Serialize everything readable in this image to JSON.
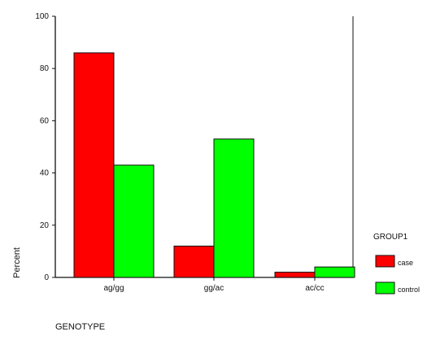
{
  "chart_data": {
    "type": "bar",
    "title": "",
    "xlabel": "GENOTYPE",
    "ylabel": "Percent",
    "ylim": [
      0,
      100
    ],
    "yticks": [
      0,
      20,
      40,
      60,
      80,
      100
    ],
    "categories": [
      "ag/gg",
      "gg/ac",
      "ac/cc"
    ],
    "series": [
      {
        "name": "case",
        "color": "#ff0000",
        "values": [
          86,
          12,
          2
        ]
      },
      {
        "name": "control",
        "color": "#00ff00",
        "values": [
          43,
          53,
          4
        ]
      }
    ],
    "legend": {
      "title": "GROUP1",
      "position": "right"
    },
    "grid": false
  }
}
